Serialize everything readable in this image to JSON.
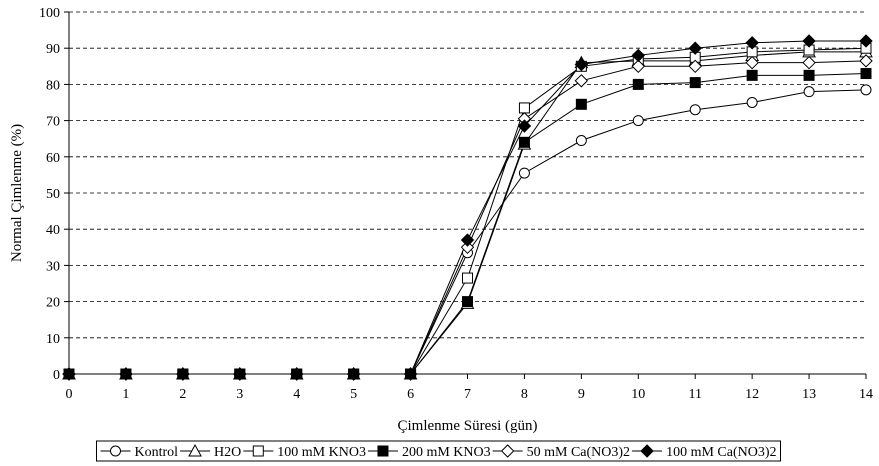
{
  "chart_data": {
    "type": "line",
    "title": "",
    "xlabel": "Çimlenme Süresi (gün)",
    "ylabel": "Normal Çimlenme (%)",
    "xlim": [
      0,
      14
    ],
    "ylim": [
      0,
      100
    ],
    "x_ticks": [
      0,
      1,
      2,
      3,
      4,
      5,
      6,
      7,
      8,
      9,
      10,
      11,
      12,
      13,
      14
    ],
    "y_ticks": [
      0,
      10,
      20,
      30,
      40,
      50,
      60,
      70,
      80,
      90,
      100
    ],
    "grid": "horizontal dashed",
    "legend_position": "bottom",
    "x": [
      0,
      1,
      2,
      3,
      4,
      5,
      6,
      7,
      8,
      9,
      10,
      11,
      12,
      13,
      14
    ],
    "series": [
      {
        "name": "Kontrol",
        "marker": "circle-open",
        "values": [
          0,
          0,
          0,
          0,
          0,
          0,
          0,
          33.5,
          55.5,
          64.5,
          70,
          73,
          75,
          78,
          78.5
        ]
      },
      {
        "name": "H2O",
        "marker": "triangle-open",
        "values": [
          0,
          0,
          0,
          0,
          0,
          0,
          0,
          19.5,
          63.5,
          86,
          86.5,
          86.5,
          88,
          89,
          89
        ]
      },
      {
        "name": "100 mM KNO3",
        "marker": "square-open",
        "values": [
          0,
          0,
          0,
          0,
          0,
          0,
          0,
          26.5,
          73.5,
          85,
          87,
          87.5,
          89,
          89.5,
          90
        ]
      },
      {
        "name": "200 mM KNO3",
        "marker": "square-filled",
        "values": [
          0,
          0,
          0,
          0,
          0,
          0,
          0,
          20,
          64,
          74.5,
          80,
          80.5,
          82.5,
          82.5,
          83
        ]
      },
      {
        "name": "50 mM Ca(NO3)2",
        "marker": "diamond-open",
        "values": [
          0,
          0,
          0,
          0,
          0,
          0,
          0,
          35,
          70.5,
          81,
          85,
          85,
          86,
          86,
          86.5
        ]
      },
      {
        "name": "100 mM Ca(NO3)2",
        "marker": "diamond-filled",
        "values": [
          0,
          0,
          0,
          0,
          0,
          0,
          0,
          37,
          68.5,
          85.5,
          88,
          90,
          91.5,
          92,
          92
        ]
      }
    ],
    "colors": {
      "line": "#000000",
      "grid": "#000000",
      "background": "#ffffff"
    }
  }
}
